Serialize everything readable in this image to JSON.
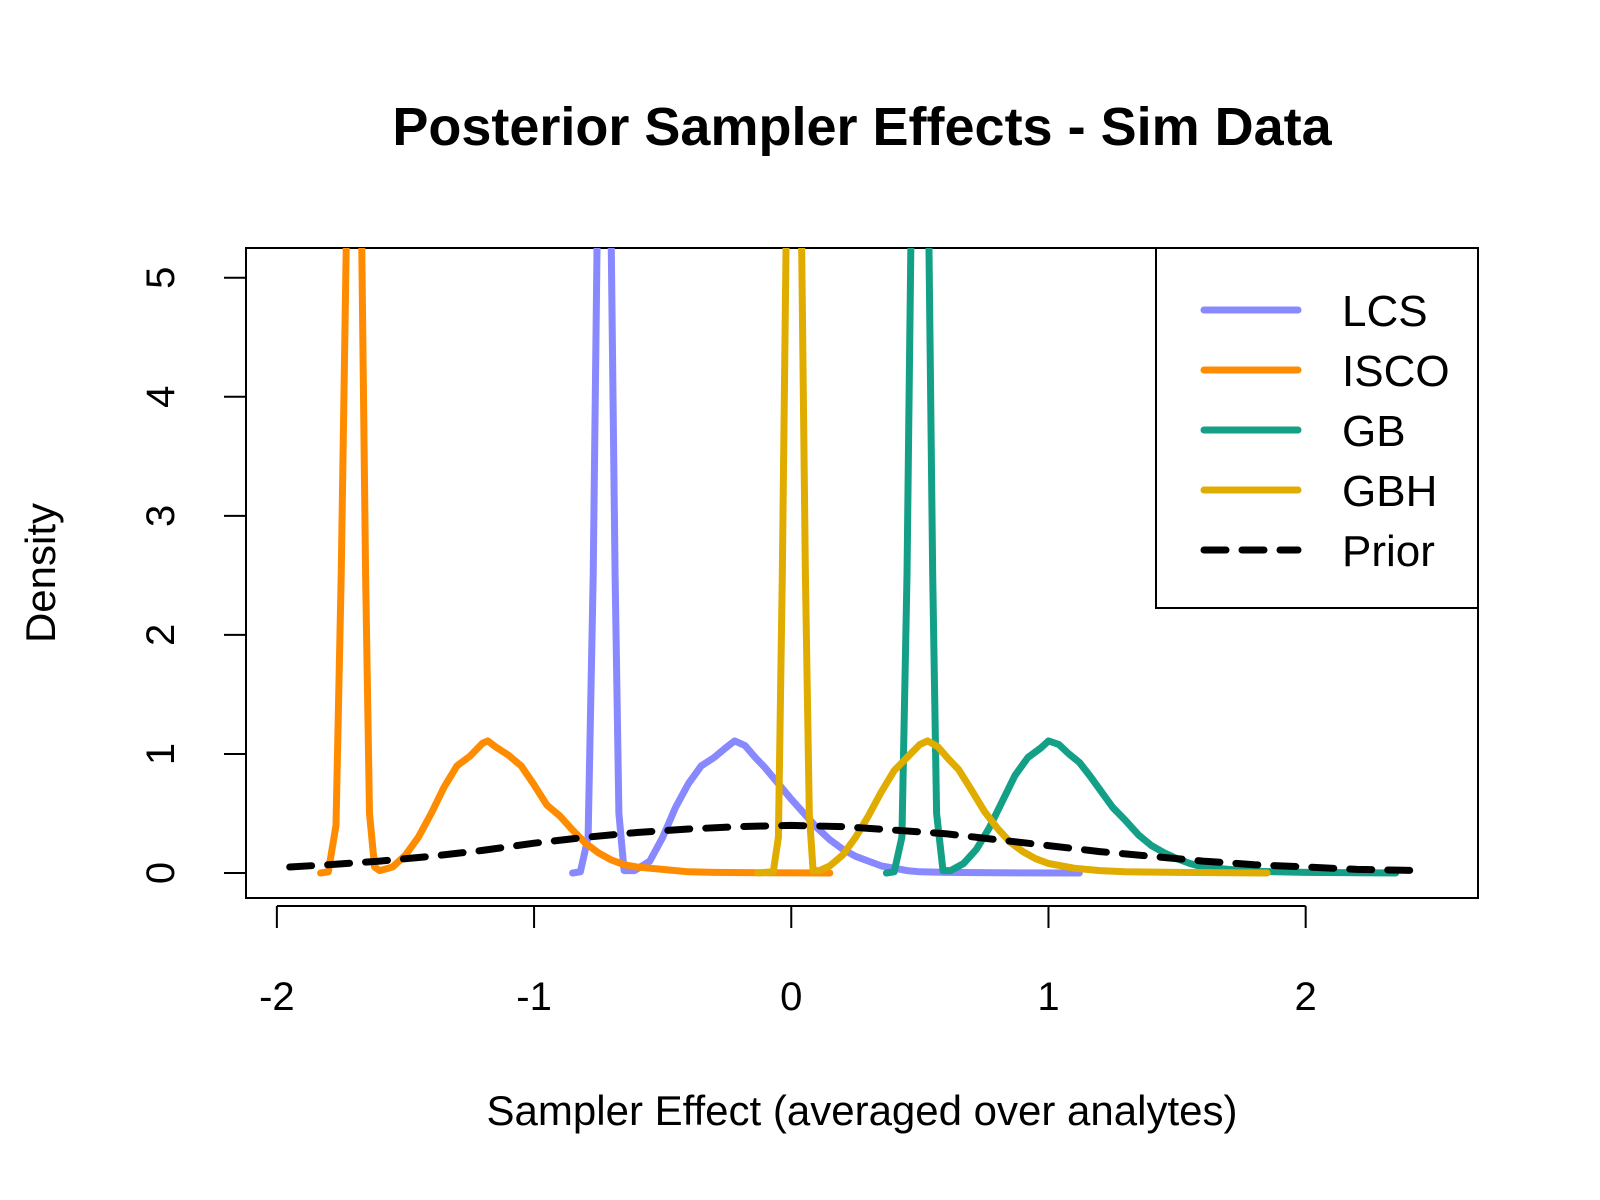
{
  "chart_data": {
    "type": "line",
    "title": "Posterior Sampler Effects - Sim Data",
    "xlabel": "Sampler Effect (averaged over analytes)",
    "ylabel": "Density",
    "xlim": [
      -2.12,
      2.67
    ],
    "ylim": [
      -0.21,
      5.25
    ],
    "x_ticks": [
      "-2",
      "-1",
      "0",
      "1",
      "2"
    ],
    "x_tick_values": [
      -2,
      -1,
      0,
      1,
      2
    ],
    "y_ticks": [
      "0",
      "1",
      "2",
      "3",
      "4",
      "5"
    ],
    "y_tick_values": [
      0,
      1,
      2,
      3,
      4,
      5
    ],
    "grid": false,
    "legend_position": "top-right",
    "legend_labels": [
      "LCS",
      "ISCO",
      "GB",
      "GBH",
      "Prior"
    ],
    "series": [
      {
        "name": "LCS",
        "color": "#8888ff",
        "dash": "solid",
        "points": [
          [
            -0.85,
            0
          ],
          [
            -0.82,
            0.01
          ],
          [
            -0.79,
            0.3
          ],
          [
            -0.77,
            2.5
          ],
          [
            -0.755,
            5.3
          ],
          [
            -0.74,
            6.5
          ],
          [
            -0.715,
            6.5
          ],
          [
            -0.7,
            5.3
          ],
          [
            -0.685,
            2.5
          ],
          [
            -0.67,
            0.5
          ],
          [
            -0.65,
            0.02
          ],
          [
            -0.61,
            0.02
          ],
          [
            -0.55,
            0.1
          ],
          [
            -0.5,
            0.3
          ],
          [
            -0.45,
            0.55
          ],
          [
            -0.4,
            0.75
          ],
          [
            -0.35,
            0.9
          ],
          [
            -0.3,
            0.97
          ],
          [
            -0.25,
            1.06
          ],
          [
            -0.22,
            1.11
          ],
          [
            -0.18,
            1.07
          ],
          [
            -0.14,
            0.97
          ],
          [
            -0.1,
            0.88
          ],
          [
            -0.05,
            0.75
          ],
          [
            0,
            0.62
          ],
          [
            0.05,
            0.5
          ],
          [
            0.1,
            0.38
          ],
          [
            0.15,
            0.28
          ],
          [
            0.2,
            0.2
          ],
          [
            0.25,
            0.14
          ],
          [
            0.3,
            0.1
          ],
          [
            0.35,
            0.06
          ],
          [
            0.4,
            0.04
          ],
          [
            0.45,
            0.02
          ],
          [
            0.5,
            0.01
          ],
          [
            0.6,
            0.005
          ],
          [
            0.8,
            0.002
          ],
          [
            1.12,
            0
          ]
        ]
      },
      {
        "name": "ISCO",
        "color": "#ff8c00",
        "dash": "solid",
        "points": [
          [
            -1.83,
            0
          ],
          [
            -1.8,
            0.01
          ],
          [
            -1.77,
            0.4
          ],
          [
            -1.75,
            2.5
          ],
          [
            -1.73,
            5.3
          ],
          [
            -1.72,
            6.5
          ],
          [
            -1.69,
            6.5
          ],
          [
            -1.67,
            5.3
          ],
          [
            -1.655,
            2.5
          ],
          [
            -1.64,
            0.5
          ],
          [
            -1.62,
            0.05
          ],
          [
            -1.6,
            0.02
          ],
          [
            -1.55,
            0.05
          ],
          [
            -1.5,
            0.15
          ],
          [
            -1.45,
            0.3
          ],
          [
            -1.4,
            0.5
          ],
          [
            -1.35,
            0.72
          ],
          [
            -1.3,
            0.9
          ],
          [
            -1.25,
            0.98
          ],
          [
            -1.2,
            1.09
          ],
          [
            -1.18,
            1.11
          ],
          [
            -1.15,
            1.06
          ],
          [
            -1.1,
            0.99
          ],
          [
            -1.05,
            0.9
          ],
          [
            -1.0,
            0.74
          ],
          [
            -0.95,
            0.57
          ],
          [
            -0.9,
            0.48
          ],
          [
            -0.85,
            0.36
          ],
          [
            -0.8,
            0.25
          ],
          [
            -0.75,
            0.17
          ],
          [
            -0.7,
            0.11
          ],
          [
            -0.65,
            0.07
          ],
          [
            -0.6,
            0.05
          ],
          [
            -0.5,
            0.03
          ],
          [
            -0.4,
            0.01
          ],
          [
            -0.3,
            0.005
          ],
          [
            -0.1,
            0.002
          ],
          [
            0.15,
            0
          ]
        ]
      },
      {
        "name": "GB",
        "color": "#13a087",
        "dash": "solid",
        "points": [
          [
            0.37,
            0
          ],
          [
            0.4,
            0.01
          ],
          [
            0.43,
            0.3
          ],
          [
            0.45,
            2.5
          ],
          [
            0.465,
            5.3
          ],
          [
            0.48,
            6.5
          ],
          [
            0.52,
            6.5
          ],
          [
            0.535,
            5.3
          ],
          [
            0.55,
            2.5
          ],
          [
            0.565,
            0.5
          ],
          [
            0.59,
            0.02
          ],
          [
            0.62,
            0.02
          ],
          [
            0.67,
            0.08
          ],
          [
            0.72,
            0.2
          ],
          [
            0.77,
            0.38
          ],
          [
            0.82,
            0.6
          ],
          [
            0.87,
            0.82
          ],
          [
            0.92,
            0.97
          ],
          [
            0.97,
            1.05
          ],
          [
            1.0,
            1.11
          ],
          [
            1.04,
            1.08
          ],
          [
            1.08,
            1.0
          ],
          [
            1.12,
            0.93
          ],
          [
            1.16,
            0.82
          ],
          [
            1.2,
            0.7
          ],
          [
            1.25,
            0.55
          ],
          [
            1.3,
            0.44
          ],
          [
            1.35,
            0.32
          ],
          [
            1.4,
            0.23
          ],
          [
            1.45,
            0.17
          ],
          [
            1.5,
            0.12
          ],
          [
            1.55,
            0.08
          ],
          [
            1.6,
            0.05
          ],
          [
            1.7,
            0.03
          ],
          [
            1.8,
            0.015
          ],
          [
            2.0,
            0.005
          ],
          [
            2.35,
            0
          ]
        ]
      },
      {
        "name": "GBH",
        "color": "#e0ac00",
        "dash": "solid",
        "points": [
          [
            -0.13,
            0
          ],
          [
            -0.07,
            0.01
          ],
          [
            -0.05,
            0.3
          ],
          [
            -0.035,
            2.5
          ],
          [
            -0.02,
            5.3
          ],
          [
            -0.01,
            6.5
          ],
          [
            0.03,
            6.5
          ],
          [
            0.04,
            5.3
          ],
          [
            0.055,
            2.5
          ],
          [
            0.07,
            0.5
          ],
          [
            0.085,
            0.02
          ],
          [
            0.11,
            0.02
          ],
          [
            0.15,
            0.06
          ],
          [
            0.2,
            0.15
          ],
          [
            0.25,
            0.3
          ],
          [
            0.3,
            0.48
          ],
          [
            0.35,
            0.68
          ],
          [
            0.4,
            0.86
          ],
          [
            0.45,
            0.97
          ],
          [
            0.5,
            1.08
          ],
          [
            0.53,
            1.11
          ],
          [
            0.57,
            1.06
          ],
          [
            0.61,
            0.96
          ],
          [
            0.65,
            0.87
          ],
          [
            0.7,
            0.7
          ],
          [
            0.75,
            0.52
          ],
          [
            0.8,
            0.38
          ],
          [
            0.85,
            0.26
          ],
          [
            0.9,
            0.18
          ],
          [
            0.95,
            0.12
          ],
          [
            1.0,
            0.08
          ],
          [
            1.1,
            0.04
          ],
          [
            1.2,
            0.02
          ],
          [
            1.3,
            0.01
          ],
          [
            1.5,
            0.005
          ],
          [
            1.85,
            0
          ]
        ]
      },
      {
        "name": "Prior",
        "color": "#000000",
        "dash": "dashed",
        "points": [
          [
            -1.95,
            0.05
          ],
          [
            -1.8,
            0.07
          ],
          [
            -1.6,
            0.1
          ],
          [
            -1.4,
            0.14
          ],
          [
            -1.2,
            0.19
          ],
          [
            -1.0,
            0.25
          ],
          [
            -0.8,
            0.3
          ],
          [
            -0.6,
            0.34
          ],
          [
            -0.4,
            0.37
          ],
          [
            -0.2,
            0.39
          ],
          [
            0,
            0.4
          ],
          [
            0.2,
            0.39
          ],
          [
            0.4,
            0.36
          ],
          [
            0.6,
            0.33
          ],
          [
            0.8,
            0.28
          ],
          [
            1.0,
            0.23
          ],
          [
            1.2,
            0.18
          ],
          [
            1.4,
            0.14
          ],
          [
            1.6,
            0.1
          ],
          [
            1.8,
            0.07
          ],
          [
            2.0,
            0.05
          ],
          [
            2.2,
            0.03
          ],
          [
            2.45,
            0.02
          ]
        ]
      }
    ]
  }
}
